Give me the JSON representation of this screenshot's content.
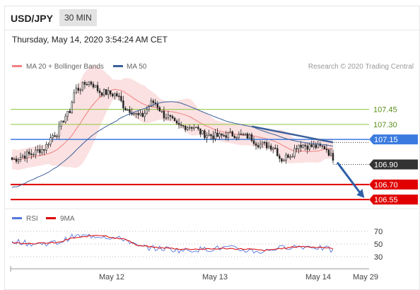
{
  "header": {
    "symbol": "USD/JPY",
    "timeframe": "30 MIN"
  },
  "timestamp": "Thursday, May 14, 2020 3:54:24 AM CET",
  "legend": {
    "ma_bb": "MA 20 + Bollinger Bands",
    "ma50": "MA 50",
    "credit": "Research © 2020 Trading Central",
    "rsi": "RSI",
    "ma9": "9MA"
  },
  "colors": {
    "bands": "#f7c9c9",
    "ma20": "#f08080",
    "ma50": "#3b5f9a",
    "green": "#8dc63f",
    "blue": "#3b7be0",
    "red": "#e00000",
    "candle": "#222222",
    "rsi": "#5577dd",
    "rsi_ma": "#dd0000"
  },
  "chart_data": [
    {
      "type": "candlestick",
      "title": "USD/JPY 30 MIN",
      "x_tick_labels": [
        "May 12",
        "May 13",
        "May 14",
        "May 29"
      ],
      "levels": [
        {
          "value": 107.45,
          "label": "107.45",
          "color": "#8dc63f",
          "style": "green"
        },
        {
          "value": 107.3,
          "label": "107.30",
          "color": "#8dc63f",
          "style": "green"
        },
        {
          "value": 107.15,
          "label": "107.15",
          "color": "#3b7be0",
          "style": "blue"
        },
        {
          "value": 106.9,
          "label": "106.90",
          "color": "#333333",
          "style": "current"
        },
        {
          "value": 106.7,
          "label": "106.70",
          "color": "#e00000",
          "style": "red"
        },
        {
          "value": 106.55,
          "label": "106.55",
          "color": "#e00000",
          "style": "red"
        }
      ],
      "ylim": [
        106.48,
        107.92
      ],
      "close_anchors": [
        [
          0,
          106.95
        ],
        [
          8,
          107.0
        ],
        [
          14,
          107.05
        ],
        [
          20,
          107.2
        ],
        [
          26,
          107.4
        ],
        [
          30,
          107.65
        ],
        [
          36,
          107.72
        ],
        [
          42,
          107.62
        ],
        [
          48,
          107.6
        ],
        [
          54,
          107.45
        ],
        [
          60,
          107.38
        ],
        [
          66,
          107.52
        ],
        [
          72,
          107.38
        ],
        [
          78,
          107.28
        ],
        [
          84,
          107.28
        ],
        [
          90,
          107.2
        ],
        [
          96,
          107.18
        ],
        [
          102,
          107.2
        ],
        [
          110,
          107.18
        ],
        [
          116,
          107.1
        ],
        [
          122,
          107.08
        ],
        [
          126,
          106.95
        ],
        [
          130,
          107.0
        ],
        [
          134,
          107.1
        ],
        [
          140,
          107.08
        ],
        [
          146,
          107.07
        ],
        [
          150,
          106.97
        ]
      ],
      "candle_count": 151,
      "trendline": {
        "from": [
          112,
          107.28
        ],
        "to": [
          150,
          107.12
        ]
      },
      "forecast_arrow": {
        "from": [
          152,
          106.92
        ],
        "to": [
          164,
          106.58
        ]
      }
    },
    {
      "type": "line",
      "title": "RSI",
      "y_ticks": [
        70,
        50,
        30
      ],
      "ylim": [
        20,
        80
      ],
      "series": [
        {
          "name": "RSI",
          "anchors": [
            [
              0,
              55
            ],
            [
              10,
              50
            ],
            [
              20,
              52
            ],
            [
              30,
              62
            ],
            [
              40,
              63
            ],
            [
              52,
              58
            ],
            [
              60,
              45
            ],
            [
              70,
              43
            ],
            [
              80,
              40
            ],
            [
              90,
              42
            ],
            [
              100,
              44
            ],
            [
              110,
              40
            ],
            [
              116,
              38
            ],
            [
              124,
              43
            ],
            [
              130,
              46
            ],
            [
              140,
              46
            ],
            [
              146,
              43
            ],
            [
              150,
              40
            ]
          ]
        },
        {
          "name": "9MA",
          "anchors": [
            [
              0,
              52
            ],
            [
              10,
              51
            ],
            [
              20,
              52
            ],
            [
              30,
              60
            ],
            [
              40,
              64
            ],
            [
              52,
              58
            ],
            [
              60,
              47
            ],
            [
              70,
              44
            ],
            [
              80,
              42
            ],
            [
              90,
              42
            ],
            [
              100,
              43
            ],
            [
              110,
              42
            ],
            [
              118,
              40
            ],
            [
              126,
              43
            ],
            [
              134,
              46
            ],
            [
              144,
              45
            ],
            [
              150,
              43
            ]
          ]
        }
      ]
    }
  ]
}
